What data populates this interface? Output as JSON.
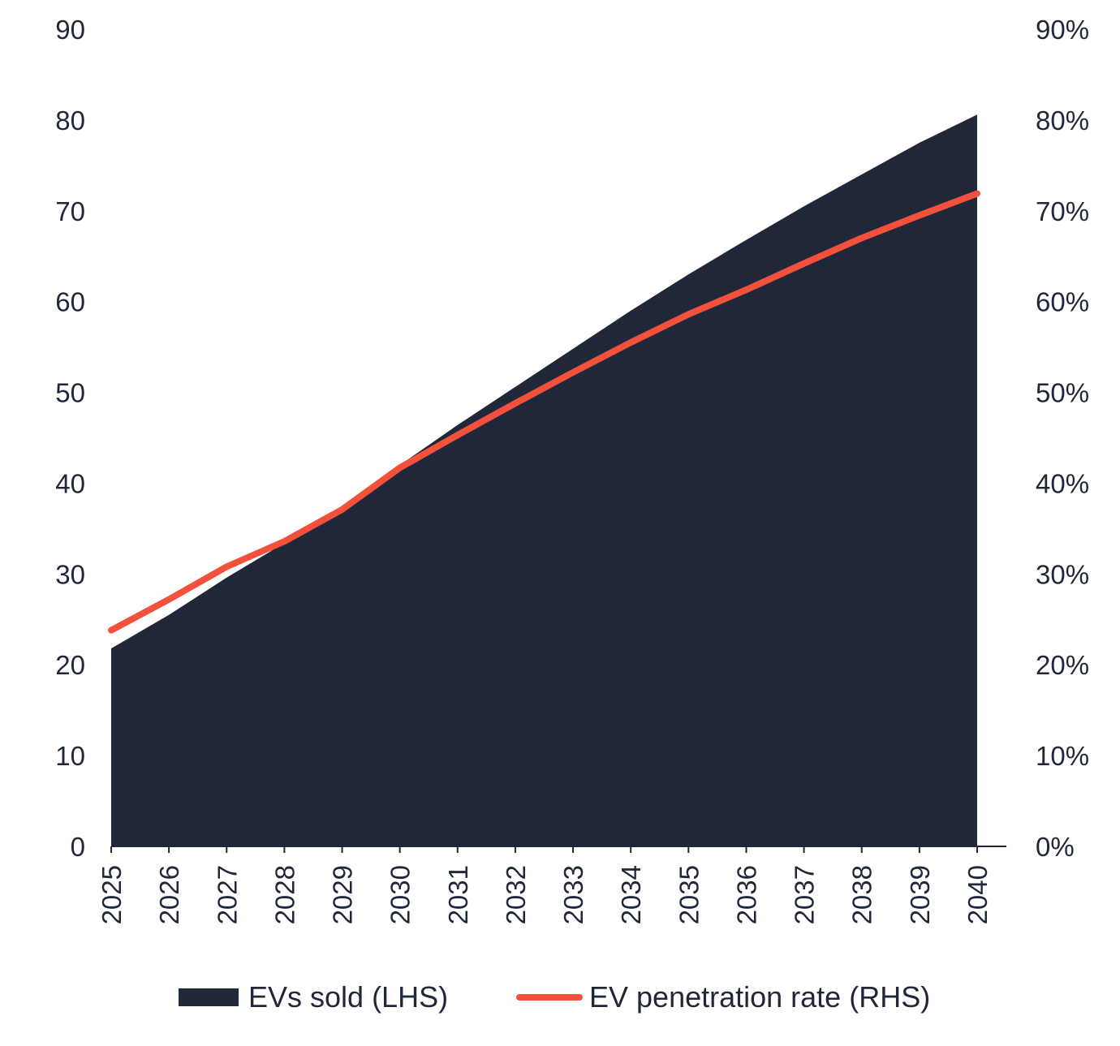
{
  "chart_data": {
    "type": "area+line",
    "categories": [
      "2025",
      "2026",
      "2027",
      "2028",
      "2029",
      "2030",
      "2031",
      "2032",
      "2033",
      "2034",
      "2035",
      "2036",
      "2037",
      "2038",
      "2039",
      "2040"
    ],
    "series": [
      {
        "name": "EVs sold (LHS)",
        "type": "area",
        "axis": "left",
        "color": "#1f2738",
        "values": [
          21.8,
          25.5,
          29.6,
          33.4,
          37.4,
          42.0,
          46.4,
          50.6,
          54.8,
          59.0,
          63.0,
          66.8,
          70.5,
          74.0,
          77.5,
          80.6
        ]
      },
      {
        "name": "EV penetration rate (RHS)",
        "type": "line",
        "axis": "right",
        "color": "#f4513c",
        "values": [
          23.8,
          27.2,
          30.8,
          33.6,
          37.1,
          41.7,
          45.3,
          48.8,
          52.2,
          55.5,
          58.6,
          61.3,
          64.2,
          67.0,
          69.5,
          71.9
        ]
      }
    ],
    "y_left": {
      "lim": [
        0,
        90
      ],
      "ticks": [
        "0",
        "10",
        "20",
        "30",
        "40",
        "50",
        "60",
        "70",
        "80",
        "90"
      ]
    },
    "y_right": {
      "lim": [
        0,
        90
      ],
      "ticks": [
        "0%",
        "10%",
        "20%",
        "30%",
        "40%",
        "50%",
        "60%",
        "70%",
        "80%",
        "90%"
      ]
    },
    "grid": false,
    "legend_position": "bottom-center",
    "title": "",
    "xlabel": "",
    "ylabel": ""
  },
  "legend": {
    "area_label": "EVs sold (LHS)",
    "line_label": "EV penetration rate (RHS)"
  }
}
